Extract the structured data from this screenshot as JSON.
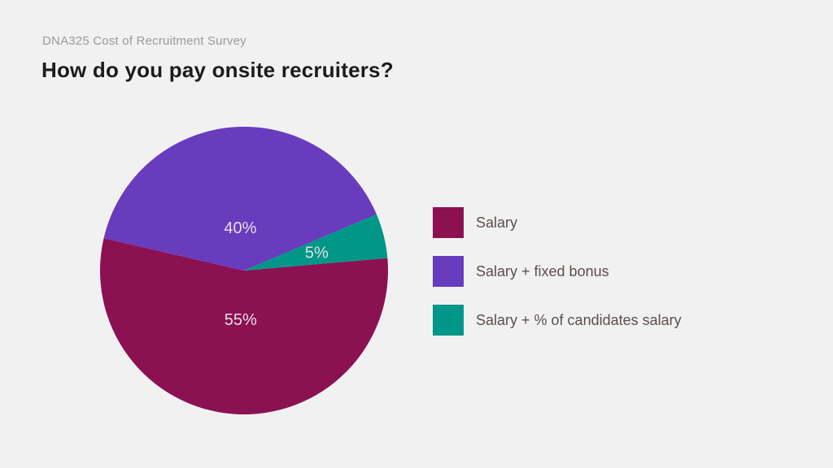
{
  "header": {
    "eyebrow": "DNA325 Cost of Recruitment Survey",
    "title": "How do you pay onsite recruiters?"
  },
  "chart_data": {
    "type": "pie",
    "title": "How do you pay onsite recruiters?",
    "subtitle": "DNA325 Cost of Recruitment Survey",
    "unit": "percent",
    "direction": "clockwise",
    "start_angle_deg_from_top": 85,
    "legend_position": "right",
    "slice_label_color": "#e6e1e4",
    "slices": [
      {
        "label": "Salary",
        "value": 55,
        "display": "55%",
        "color": "#8b1153",
        "label_radius_frac": 0.34
      },
      {
        "label": "Salary + fixed bonus",
        "value": 40,
        "display": "40%",
        "color": "#693bbd",
        "label_radius_frac": 0.3
      },
      {
        "label": "Salary + % of candidates salary",
        "value": 5,
        "display": "5%",
        "color": "#009688",
        "label_radius_frac": 0.52
      }
    ]
  },
  "colors": {
    "background": "#f1f1f2",
    "eyebrow_text": "#9a9a9a",
    "title_text": "#1c1c1c",
    "legend_text": "#5a504b"
  }
}
